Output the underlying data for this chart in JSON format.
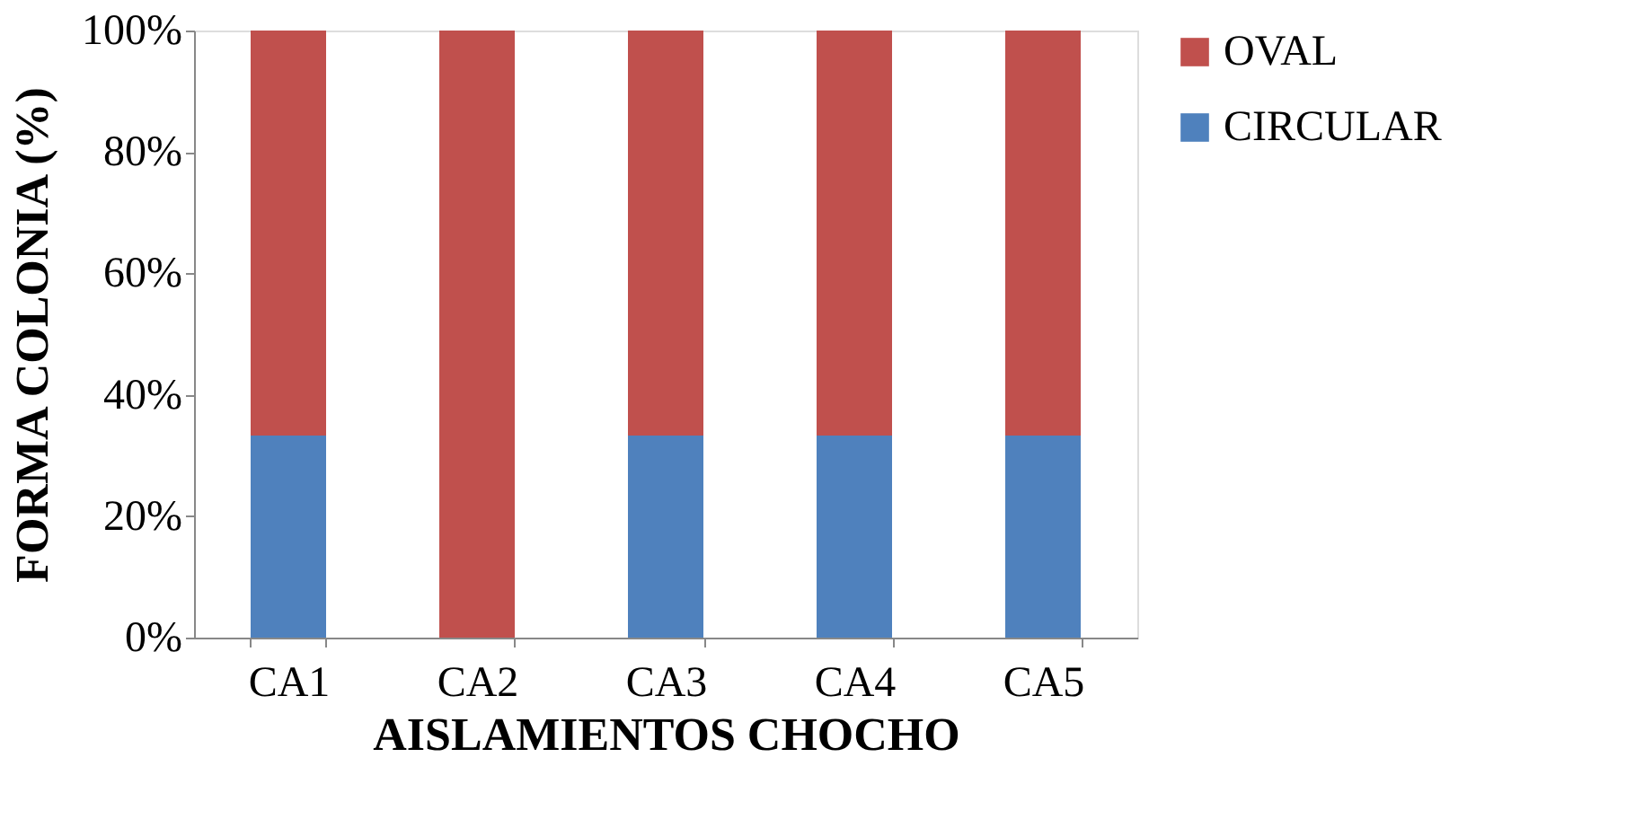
{
  "chart_data": {
    "type": "bar",
    "stacked": true,
    "xlabel": "AISLAMIENTOS CHOCHO",
    "ylabel": "FORMA COLONIA (%)",
    "categories": [
      "CA1",
      "CA2",
      "CA3",
      "CA4",
      "CA5"
    ],
    "series": [
      {
        "name": "CIRCULAR",
        "color": "#4f81bd",
        "values": [
          33.3,
          0,
          33.3,
          33.3,
          33.3
        ]
      },
      {
        "name": "OVAL",
        "color": "#c0504d",
        "values": [
          66.7,
          100,
          66.7,
          66.7,
          66.7
        ]
      }
    ],
    "ylim": [
      0,
      100
    ],
    "yticks": [
      {
        "value": 0,
        "label": "0%"
      },
      {
        "value": 20,
        "label": "20%"
      },
      {
        "value": 40,
        "label": "40%"
      },
      {
        "value": 60,
        "label": "60%"
      },
      {
        "value": 80,
        "label": "80%"
      },
      {
        "value": 100,
        "label": "100%"
      }
    ],
    "grid": false,
    "legend": "right"
  }
}
